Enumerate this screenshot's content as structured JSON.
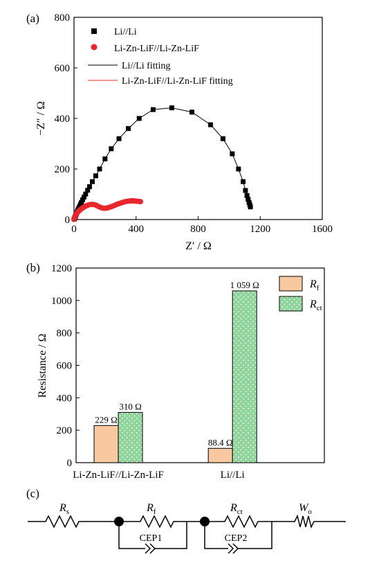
{
  "panels": {
    "a": "(a)",
    "b": "(b)",
    "c": "(c)"
  },
  "chart_data": [
    {
      "type": "scatter",
      "xlabel": "Z′ / Ω",
      "ylabel": "−Z″ / Ω",
      "xlim": [
        0,
        1600
      ],
      "ylim": [
        0,
        800
      ],
      "xticks": [
        "0",
        "400",
        "800",
        "1200",
        "1600"
      ],
      "yticks": [
        "0",
        "200",
        "400",
        "600",
        "800"
      ],
      "legend_position": "top-left",
      "legend": [
        {
          "label": "Li//Li",
          "kind": "square-marker",
          "color": "#000000"
        },
        {
          "label": "Li-Zn-LiF//Li-Zn-LiF",
          "kind": "circle-marker",
          "color": "#e8262b"
        },
        {
          "label": "Li//Li fitting",
          "kind": "line",
          "color": "#000000"
        },
        {
          "label": "Li-Zn-LiF//Li-Zn-LiF fitting",
          "kind": "line",
          "color": "#e8262b"
        }
      ],
      "series": [
        {
          "name": "Li//Li",
          "color": "#000000",
          "x": [
            2,
            5,
            8,
            12,
            16,
            20,
            25,
            30,
            36,
            42,
            48,
            56,
            65,
            75,
            88,
            100,
            118,
            140,
            165,
            200,
            240,
            290,
            350,
            420,
            510,
            630,
            760,
            880,
            960,
            1020,
            1060,
            1090,
            1105,
            1115,
            1122,
            1128,
            1133,
            1137
          ],
          "y": [
            2,
            6,
            11,
            17,
            23,
            30,
            37,
            44,
            52,
            60,
            68,
            78,
            89,
            101,
            116,
            130,
            150,
            173,
            200,
            240,
            280,
            320,
            360,
            400,
            435,
            442,
            425,
            375,
            320,
            260,
            200,
            150,
            115,
            95,
            80,
            68,
            58,
            50
          ]
        },
        {
          "name": "Li-Zn-LiF//Li-Zn-LiF",
          "color": "#e8262b",
          "x": [
            0,
            2,
            4,
            7,
            10,
            14,
            18,
            23,
            29,
            36,
            44,
            53,
            63,
            74,
            86,
            100,
            115,
            130,
            145,
            160,
            175,
            190,
            205,
            220,
            235,
            250,
            265,
            280,
            295,
            310,
            325,
            340,
            355,
            370,
            385,
            400,
            415,
            428
          ],
          "y": [
            1,
            5,
            9,
            13,
            17,
            21,
            25,
            29,
            33,
            37,
            41,
            45,
            49,
            53,
            56,
            59,
            60,
            59,
            56,
            51,
            47,
            45,
            45,
            47,
            50,
            53,
            57,
            61,
            64,
            67,
            70,
            72,
            73,
            74,
            74,
            73,
            72,
            71
          ]
        }
      ]
    },
    {
      "type": "bar",
      "ylabel": "Resistance / Ω",
      "ylim": [
        0,
        1200
      ],
      "yticks": [
        "0",
        "200",
        "400",
        "600",
        "800",
        "1000",
        "1200"
      ],
      "categories": [
        "Li-Zn-LiF//Li-Zn-LiF",
        "Li//Li"
      ],
      "legend_position": "top-right",
      "series": [
        {
          "name": "Rf",
          "color": "#f8c9a0",
          "values": [
            229,
            88.4
          ],
          "labels": [
            "229 Ω",
            "88.4 Ω"
          ]
        },
        {
          "name": "Rct",
          "color": "#8fd49a",
          "values": [
            310,
            1059
          ],
          "labels": [
            "310 Ω",
            "1 059 Ω"
          ]
        }
      ]
    }
  ],
  "circuit": {
    "labels": [
      "Rs",
      "Rf",
      "Rct",
      "Wo",
      "CEP1",
      "CEP2"
    ]
  }
}
